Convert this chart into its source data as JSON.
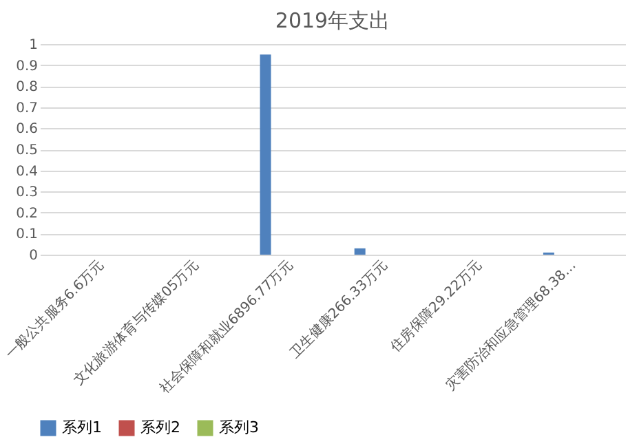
{
  "chart_data": {
    "type": "bar",
    "title": "2019年支出",
    "categories": [
      "一般公共服务6.6万元",
      "文化旅游体育与传媒05万元",
      "社会保障和就业6896.77万元",
      "卫生健康266.33万元",
      "住房保障29.22万元",
      "灾害防治和应急管理68.38…"
    ],
    "series": [
      {
        "name": "系列1",
        "color": "#4f81bd",
        "values": [
          0,
          0,
          0.95,
          0.03,
          0,
          0.01
        ]
      },
      {
        "name": "系列2",
        "color": "#c0504d",
        "values": [
          null,
          null,
          null,
          null,
          null,
          null
        ]
      },
      {
        "name": "系列3",
        "type": "line",
        "color": "#9bbb59",
        "values": [
          null,
          null,
          null,
          null,
          null,
          null
        ]
      }
    ],
    "ylim": [
      0,
      1
    ],
    "yticks": [
      0,
      0.1,
      0.2,
      0.3,
      0.4,
      0.5,
      0.6,
      0.7,
      0.8,
      0.9,
      1
    ],
    "grid": "y",
    "legend": "bottom"
  }
}
